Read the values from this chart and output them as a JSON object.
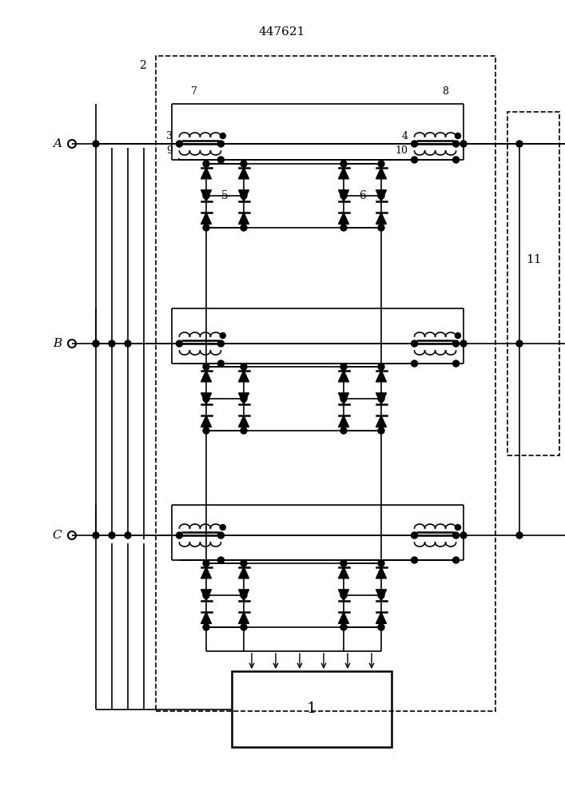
{
  "title": "447621",
  "bg_color": "#ffffff",
  "lw": 1.2,
  "lw_thick": 1.8,
  "phase_labels": [
    "A",
    "B",
    "C"
  ],
  "block_labels": {
    "1": "1",
    "2": "2",
    "3": "3",
    "4": "4",
    "5": "5",
    "6": "6",
    "7": "7",
    "8": "8",
    "9": "9",
    "10": "10",
    "11": "11"
  }
}
